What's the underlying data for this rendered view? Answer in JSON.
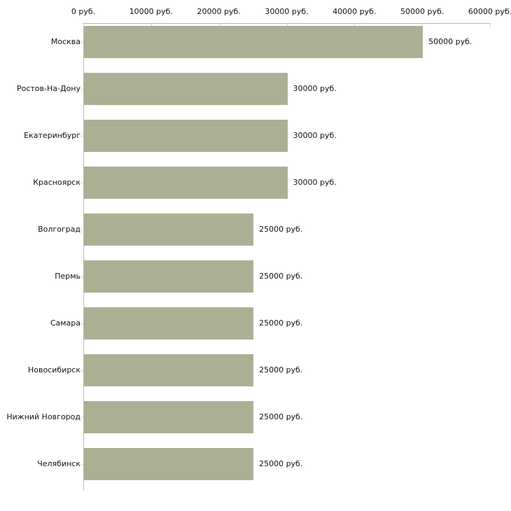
{
  "chart_data": {
    "type": "bar",
    "orientation": "horizontal",
    "title": "",
    "xlabel": "",
    "ylabel": "",
    "unit": "руб.",
    "xlim": [
      0,
      60000
    ],
    "x_tick_step": 10000,
    "x_tick_labels": [
      "0 руб.",
      "10000 руб.",
      "20000 руб.",
      "30000 руб.",
      "40000 руб.",
      "50000 руб.",
      "60000 руб."
    ],
    "categories": [
      "Москва",
      "Ростов-На-Дону",
      "Екатеринбург",
      "Красноярск",
      "Волгоград",
      "Пермь",
      "Самара",
      "Новосибирск",
      "Нижний Новгород",
      "Челябинск"
    ],
    "values": [
      50000,
      30000,
      30000,
      30000,
      25000,
      25000,
      25000,
      25000,
      25000,
      25000
    ],
    "value_labels": [
      "50000 руб.",
      "30000 руб.",
      "30000 руб.",
      "30000 руб.",
      "25000 руб.",
      "25000 руб.",
      "25000 руб.",
      "25000 руб.",
      "25000 руб.",
      "25000 руб."
    ],
    "grid": false,
    "legend": false,
    "colors": {
      "bar": "#abb095",
      "axis_line": "#bdbaab",
      "tick": "#d9d6c1",
      "text": "#111111"
    }
  }
}
